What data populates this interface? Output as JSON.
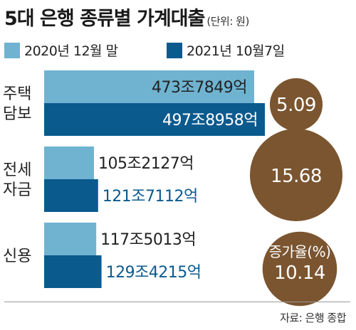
{
  "title": "5대 은행 종류별 가계대출",
  "unit": "(단위: 원)",
  "source": "자료: 은행 종합",
  "colors": {
    "light": "#6fb3d1",
    "dark": "#0b5a8e",
    "bubble": "#7b5530",
    "dark_text": "#0b5a8e"
  },
  "chart_data": {
    "type": "bar",
    "orientation": "horizontal",
    "categories": [
      "주택\n담보",
      "전세\n자금",
      "신용"
    ],
    "series": [
      {
        "name": "2020년 12월 말",
        "values": [
          4737849,
          1052127,
          1175013
        ],
        "labels": [
          "473조7849억",
          "105조2127억",
          "117조5013억"
        ]
      },
      {
        "name": "2021년 10월7일",
        "values": [
          4978958,
          1217112,
          1294215
        ],
        "labels": [
          "497조8958억",
          "121조7112억",
          "129조4215억"
        ]
      }
    ],
    "value_unit": "억 원",
    "growth_rate": {
      "label": "증가율(%)",
      "values": [
        5.09,
        15.68,
        10.14
      ],
      "labels": [
        "5.09",
        "15.68",
        "10.14"
      ]
    }
  }
}
